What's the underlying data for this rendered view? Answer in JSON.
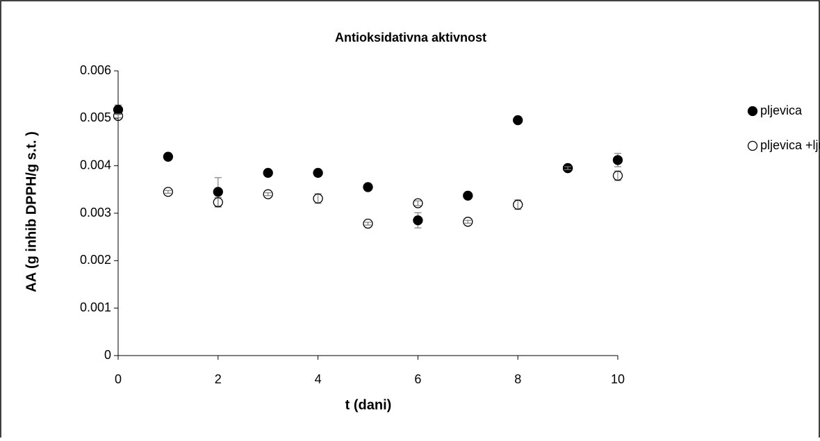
{
  "chart_data": {
    "type": "scatter",
    "title": "Antioksidativna aktivnost",
    "xlabel": "t (dani)",
    "ylabel": "AA (g inhib DPPH/g s.t. )",
    "xlim": [
      0,
      10
    ],
    "xticks": [
      0,
      2,
      4,
      6,
      8,
      10
    ],
    "ylim": [
      0,
      0.006
    ],
    "yticks": [
      0,
      0.001,
      0.002,
      0.003,
      0.004,
      0.005,
      0.006
    ],
    "grid": false,
    "legend": "right",
    "error_color": "#7f7f7f",
    "series": [
      {
        "name": "pljevica",
        "color": "#000000",
        "marker": "filled",
        "x": [
          0,
          1,
          2,
          3,
          4,
          5,
          6,
          7,
          8,
          9,
          10
        ],
        "values": [
          0.00518,
          0.00419,
          0.00345,
          0.00385,
          0.00385,
          0.00355,
          0.00285,
          0.00337,
          0.00496,
          0.00395,
          0.00412
        ],
        "errors": [
          0.0001,
          3e-05,
          0.0003,
          3e-05,
          3e-05,
          3e-05,
          0.00016,
          3e-05,
          3e-05,
          3e-05,
          0.00014
        ]
      },
      {
        "name": "pljevica +ljuska ječma",
        "color": "#000000",
        "marker": "open",
        "x": [
          0,
          1,
          2,
          3,
          4,
          5,
          6,
          7,
          8,
          9,
          10
        ],
        "values": [
          0.00505,
          0.00345,
          0.00323,
          0.0034,
          0.00331,
          0.00278,
          0.00321,
          0.00282,
          0.00318,
          0.00395,
          0.00379
        ],
        "errors": [
          4e-05,
          3e-05,
          0.0001,
          3e-05,
          0.0001,
          3e-05,
          5e-05,
          3e-05,
          0.0001,
          3e-05,
          0.0001
        ]
      }
    ]
  }
}
